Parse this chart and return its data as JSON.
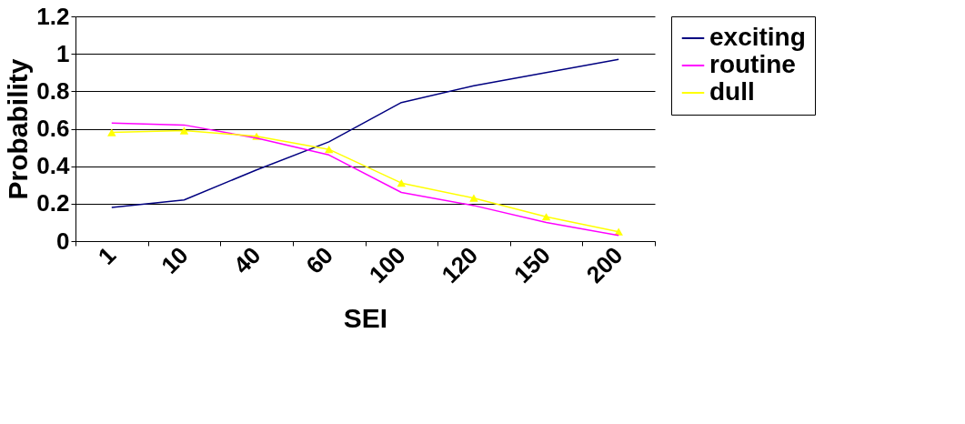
{
  "chart_data": {
    "type": "line",
    "xlabel": "SEI",
    "ylabel": "Probability",
    "categories": [
      "1",
      "10",
      "40",
      "60",
      "100",
      "120",
      "150",
      "200"
    ],
    "series": [
      {
        "name": "exciting",
        "color": "#000080",
        "marker": "none",
        "values": [
          0.18,
          0.22,
          0.38,
          0.53,
          0.74,
          0.83,
          0.9,
          0.97
        ]
      },
      {
        "name": "routine",
        "color": "#ff00ff",
        "marker": "none",
        "values": [
          0.63,
          0.62,
          0.55,
          0.46,
          0.26,
          0.19,
          0.1,
          0.03
        ]
      },
      {
        "name": "dull",
        "color": "#ffff00",
        "marker": "triangle",
        "values": [
          0.58,
          0.59,
          0.56,
          0.49,
          0.31,
          0.23,
          0.13,
          0.05
        ]
      }
    ],
    "ylim": [
      0,
      1.2
    ],
    "yticks": [
      0,
      0.2,
      0.4,
      0.6,
      0.8,
      1,
      1.2
    ],
    "grid": "y",
    "legend": "right"
  }
}
